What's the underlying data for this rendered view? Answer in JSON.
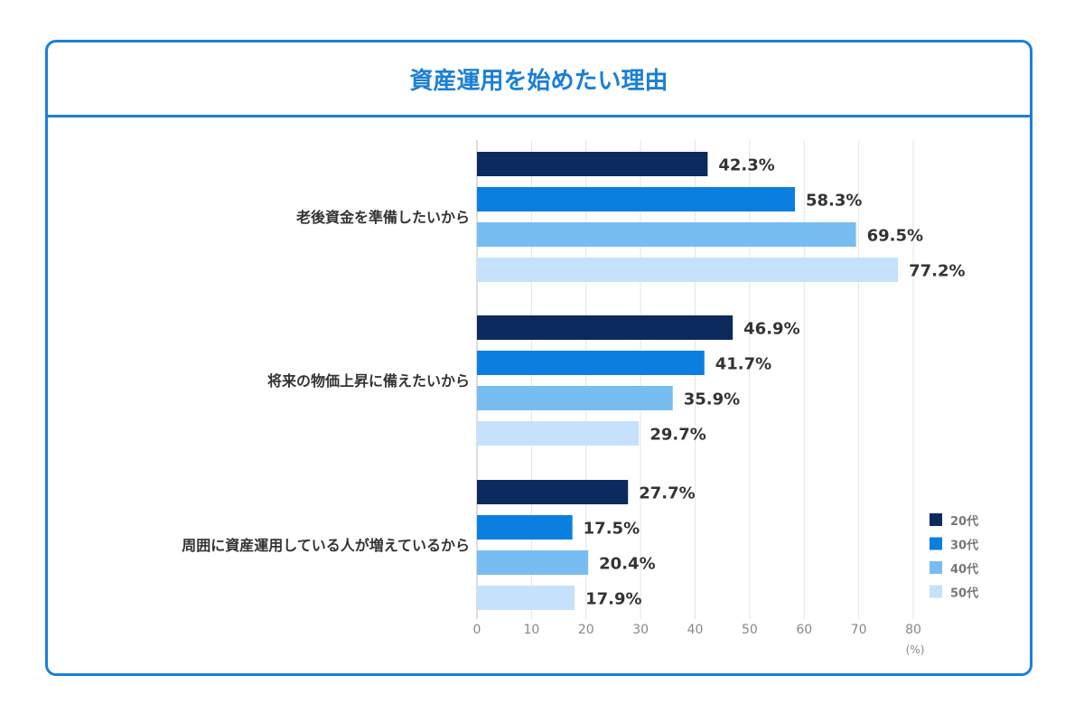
{
  "chart_data": {
    "type": "bar",
    "orientation": "horizontal",
    "title": "資産運用を始めたい理由",
    "categories": [
      "老後資金を準備したいから",
      "将来の物価上昇に備えたいから",
      "周囲に資産運用している人が増えているから"
    ],
    "series": [
      {
        "name": "20代",
        "color": "#0d2a5e",
        "values": [
          42.3,
          46.9,
          27.7
        ]
      },
      {
        "name": "30代",
        "color": "#0a7fe0",
        "values": [
          58.3,
          41.7,
          17.5
        ]
      },
      {
        "name": "40代",
        "color": "#78bdf2",
        "values": [
          69.5,
          35.9,
          20.4
        ]
      },
      {
        "name": "50代",
        "color": "#c6e1fb",
        "values": [
          77.2,
          29.7,
          17.9
        ]
      }
    ],
    "xlim": [
      0,
      80
    ],
    "xticks": [
      0,
      10,
      20,
      30,
      40,
      50,
      60,
      70,
      80
    ],
    "xunit": "(%)",
    "value_suffix": "%",
    "grid": true,
    "legend": "bottom-right"
  },
  "colors": {
    "accent": "#1a80d9"
  }
}
